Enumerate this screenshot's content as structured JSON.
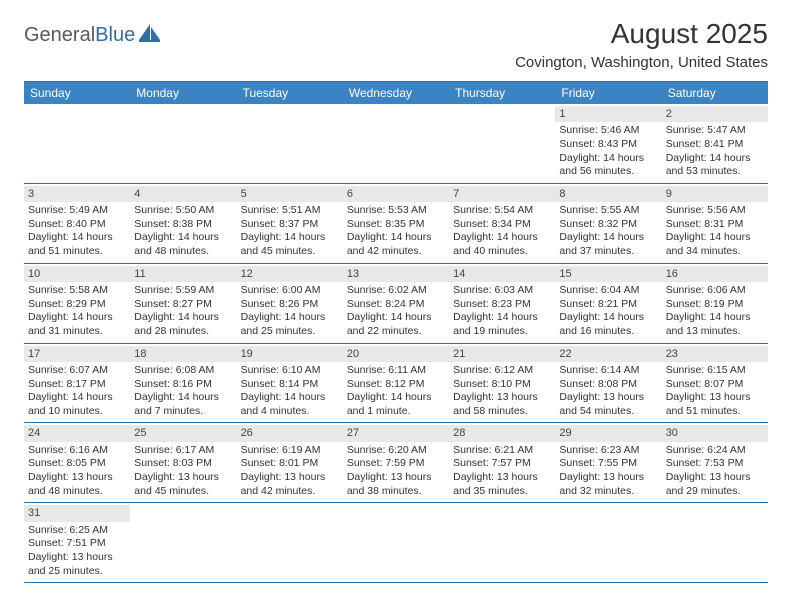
{
  "logo": {
    "text1": "General",
    "text2": "Blue"
  },
  "title": "August 2025",
  "location": "Covington, Washington, United States",
  "colors": {
    "header_bg": "#3b84c4",
    "header_text": "#ffffff",
    "border": "#2f6fa8",
    "daynum_bg": "#e8e8e8",
    "body_text": "#333333",
    "logo_gray": "#5a5a5a",
    "logo_blue": "#2f6fa8"
  },
  "typography": {
    "title_fontsize": 28,
    "location_fontsize": 15,
    "weekday_fontsize": 12,
    "cell_fontsize": 10.5
  },
  "weekdays": [
    "Sunday",
    "Monday",
    "Tuesday",
    "Wednesday",
    "Thursday",
    "Friday",
    "Saturday"
  ],
  "weeks": [
    [
      {
        "n": "",
        "sr": "",
        "ss": "",
        "dl": ""
      },
      {
        "n": "",
        "sr": "",
        "ss": "",
        "dl": ""
      },
      {
        "n": "",
        "sr": "",
        "ss": "",
        "dl": ""
      },
      {
        "n": "",
        "sr": "",
        "ss": "",
        "dl": ""
      },
      {
        "n": "",
        "sr": "",
        "ss": "",
        "dl": ""
      },
      {
        "n": "1",
        "sr": "Sunrise: 5:46 AM",
        "ss": "Sunset: 8:43 PM",
        "dl": "Daylight: 14 hours and 56 minutes."
      },
      {
        "n": "2",
        "sr": "Sunrise: 5:47 AM",
        "ss": "Sunset: 8:41 PM",
        "dl": "Daylight: 14 hours and 53 minutes."
      }
    ],
    [
      {
        "n": "3",
        "sr": "Sunrise: 5:49 AM",
        "ss": "Sunset: 8:40 PM",
        "dl": "Daylight: 14 hours and 51 minutes."
      },
      {
        "n": "4",
        "sr": "Sunrise: 5:50 AM",
        "ss": "Sunset: 8:38 PM",
        "dl": "Daylight: 14 hours and 48 minutes."
      },
      {
        "n": "5",
        "sr": "Sunrise: 5:51 AM",
        "ss": "Sunset: 8:37 PM",
        "dl": "Daylight: 14 hours and 45 minutes."
      },
      {
        "n": "6",
        "sr": "Sunrise: 5:53 AM",
        "ss": "Sunset: 8:35 PM",
        "dl": "Daylight: 14 hours and 42 minutes."
      },
      {
        "n": "7",
        "sr": "Sunrise: 5:54 AM",
        "ss": "Sunset: 8:34 PM",
        "dl": "Daylight: 14 hours and 40 minutes."
      },
      {
        "n": "8",
        "sr": "Sunrise: 5:55 AM",
        "ss": "Sunset: 8:32 PM",
        "dl": "Daylight: 14 hours and 37 minutes."
      },
      {
        "n": "9",
        "sr": "Sunrise: 5:56 AM",
        "ss": "Sunset: 8:31 PM",
        "dl": "Daylight: 14 hours and 34 minutes."
      }
    ],
    [
      {
        "n": "10",
        "sr": "Sunrise: 5:58 AM",
        "ss": "Sunset: 8:29 PM",
        "dl": "Daylight: 14 hours and 31 minutes."
      },
      {
        "n": "11",
        "sr": "Sunrise: 5:59 AM",
        "ss": "Sunset: 8:27 PM",
        "dl": "Daylight: 14 hours and 28 minutes."
      },
      {
        "n": "12",
        "sr": "Sunrise: 6:00 AM",
        "ss": "Sunset: 8:26 PM",
        "dl": "Daylight: 14 hours and 25 minutes."
      },
      {
        "n": "13",
        "sr": "Sunrise: 6:02 AM",
        "ss": "Sunset: 8:24 PM",
        "dl": "Daylight: 14 hours and 22 minutes."
      },
      {
        "n": "14",
        "sr": "Sunrise: 6:03 AM",
        "ss": "Sunset: 8:23 PM",
        "dl": "Daylight: 14 hours and 19 minutes."
      },
      {
        "n": "15",
        "sr": "Sunrise: 6:04 AM",
        "ss": "Sunset: 8:21 PM",
        "dl": "Daylight: 14 hours and 16 minutes."
      },
      {
        "n": "16",
        "sr": "Sunrise: 6:06 AM",
        "ss": "Sunset: 8:19 PM",
        "dl": "Daylight: 14 hours and 13 minutes."
      }
    ],
    [
      {
        "n": "17",
        "sr": "Sunrise: 6:07 AM",
        "ss": "Sunset: 8:17 PM",
        "dl": "Daylight: 14 hours and 10 minutes."
      },
      {
        "n": "18",
        "sr": "Sunrise: 6:08 AM",
        "ss": "Sunset: 8:16 PM",
        "dl": "Daylight: 14 hours and 7 minutes."
      },
      {
        "n": "19",
        "sr": "Sunrise: 6:10 AM",
        "ss": "Sunset: 8:14 PM",
        "dl": "Daylight: 14 hours and 4 minutes."
      },
      {
        "n": "20",
        "sr": "Sunrise: 6:11 AM",
        "ss": "Sunset: 8:12 PM",
        "dl": "Daylight: 14 hours and 1 minute."
      },
      {
        "n": "21",
        "sr": "Sunrise: 6:12 AM",
        "ss": "Sunset: 8:10 PM",
        "dl": "Daylight: 13 hours and 58 minutes."
      },
      {
        "n": "22",
        "sr": "Sunrise: 6:14 AM",
        "ss": "Sunset: 8:08 PM",
        "dl": "Daylight: 13 hours and 54 minutes."
      },
      {
        "n": "23",
        "sr": "Sunrise: 6:15 AM",
        "ss": "Sunset: 8:07 PM",
        "dl": "Daylight: 13 hours and 51 minutes."
      }
    ],
    [
      {
        "n": "24",
        "sr": "Sunrise: 6:16 AM",
        "ss": "Sunset: 8:05 PM",
        "dl": "Daylight: 13 hours and 48 minutes."
      },
      {
        "n": "25",
        "sr": "Sunrise: 6:17 AM",
        "ss": "Sunset: 8:03 PM",
        "dl": "Daylight: 13 hours and 45 minutes."
      },
      {
        "n": "26",
        "sr": "Sunrise: 6:19 AM",
        "ss": "Sunset: 8:01 PM",
        "dl": "Daylight: 13 hours and 42 minutes."
      },
      {
        "n": "27",
        "sr": "Sunrise: 6:20 AM",
        "ss": "Sunset: 7:59 PM",
        "dl": "Daylight: 13 hours and 38 minutes."
      },
      {
        "n": "28",
        "sr": "Sunrise: 6:21 AM",
        "ss": "Sunset: 7:57 PM",
        "dl": "Daylight: 13 hours and 35 minutes."
      },
      {
        "n": "29",
        "sr": "Sunrise: 6:23 AM",
        "ss": "Sunset: 7:55 PM",
        "dl": "Daylight: 13 hours and 32 minutes."
      },
      {
        "n": "30",
        "sr": "Sunrise: 6:24 AM",
        "ss": "Sunset: 7:53 PM",
        "dl": "Daylight: 13 hours and 29 minutes."
      }
    ],
    [
      {
        "n": "31",
        "sr": "Sunrise: 6:25 AM",
        "ss": "Sunset: 7:51 PM",
        "dl": "Daylight: 13 hours and 25 minutes."
      },
      {
        "n": "",
        "sr": "",
        "ss": "",
        "dl": ""
      },
      {
        "n": "",
        "sr": "",
        "ss": "",
        "dl": ""
      },
      {
        "n": "",
        "sr": "",
        "ss": "",
        "dl": ""
      },
      {
        "n": "",
        "sr": "",
        "ss": "",
        "dl": ""
      },
      {
        "n": "",
        "sr": "",
        "ss": "",
        "dl": ""
      },
      {
        "n": "",
        "sr": "",
        "ss": "",
        "dl": ""
      }
    ]
  ]
}
